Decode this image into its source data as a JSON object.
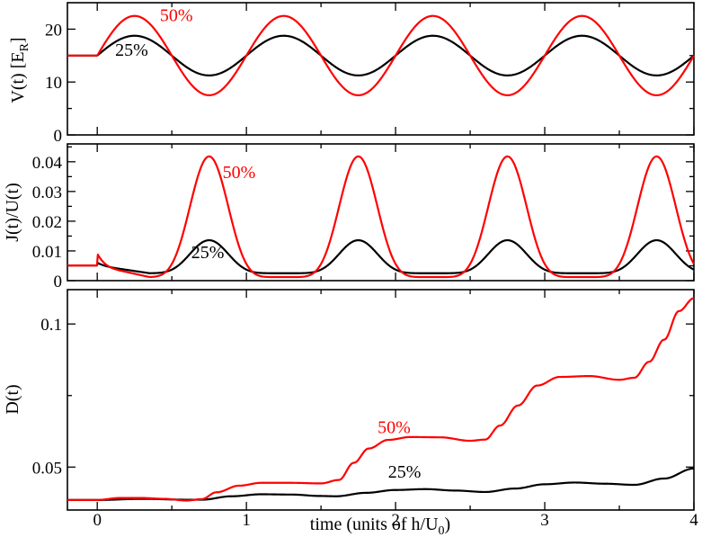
{
  "chart_data": {
    "type": "line",
    "shared_x": {
      "label_prefix": "time (units of h/U",
      "label_sub": "0",
      "label_suffix": ")",
      "range": [
        -0.2,
        4.0
      ],
      "ticks": [
        0,
        1,
        2,
        3,
        4
      ],
      "tick_labels": [
        "0",
        "1",
        "2",
        "3",
        "4"
      ]
    },
    "panels": [
      {
        "id": "V",
        "ylabel_prefix": "V(t) [E",
        "ylabel_sub": "R",
        "ylabel_suffix": "]",
        "ylim": [
          0,
          25
        ],
        "yticks": [
          0,
          10,
          20
        ],
        "ytick_labels": [
          "0",
          "10",
          "20"
        ],
        "series": [
          {
            "name": "50%",
            "color": "#ff0000",
            "model": "V",
            "base": 15,
            "amp": 7.5
          },
          {
            "name": "25%",
            "color": "#000000",
            "model": "V",
            "base": 15,
            "amp": 3.75
          }
        ],
        "annotations": [
          {
            "text": "50%",
            "color": "#ff0000",
            "x": 0.42,
            "y": 21.5
          },
          {
            "text": "25%",
            "color": "#000000",
            "x": 0.12,
            "y": 15.0
          }
        ]
      },
      {
        "id": "J",
        "ylabel": "J(t)/U(t)",
        "ylim": [
          0,
          0.046
        ],
        "yticks": [
          0,
          0.01,
          0.02,
          0.03,
          0.04
        ],
        "ytick_labels": [
          "0",
          "0.01",
          "0.02",
          "0.03",
          "0.04"
        ],
        "series": [
          {
            "name": "50%",
            "color": "#ff0000",
            "model": "J",
            "base": 0.0051,
            "peak": 0.0418,
            "min": 0.0012
          },
          {
            "name": "25%",
            "color": "#000000",
            "model": "J",
            "base": 0.0051,
            "peak": 0.0136,
            "min": 0.0025
          }
        ],
        "annotations": [
          {
            "text": "50%",
            "color": "#ff0000",
            "x": 0.84,
            "y": 0.0345
          },
          {
            "text": "25%",
            "color": "#000000",
            "x": 0.63,
            "y": 0.0075
          }
        ]
      },
      {
        "id": "D",
        "ylabel": "D(t)",
        "ylim": [
          0.035,
          0.112
        ],
        "yticks": [
          0.05,
          0.1
        ],
        "ytick_labels": [
          "0.05",
          "0.1"
        ],
        "series": [
          {
            "name": "50%",
            "color": "#ff0000",
            "model": "D",
            "x": [
              -0.2,
              0.0,
              0.15,
              0.3,
              0.45,
              0.6,
              0.7,
              0.8,
              0.95,
              1.1,
              1.3,
              1.5,
              1.62,
              1.72,
              1.82,
              1.95,
              2.1,
              2.3,
              2.5,
              2.6,
              2.7,
              2.82,
              2.95,
              3.1,
              3.3,
              3.5,
              3.6,
              3.7,
              3.8,
              3.9,
              4.0
            ],
            "y": [
              0.0385,
              0.0385,
              0.0392,
              0.0392,
              0.0389,
              0.0383,
              0.0388,
              0.0412,
              0.0435,
              0.0445,
              0.0445,
              0.0443,
              0.0455,
              0.0515,
              0.0565,
              0.0595,
              0.0605,
              0.0604,
              0.0592,
              0.0596,
              0.0645,
              0.0715,
              0.0785,
              0.0815,
              0.0818,
              0.0805,
              0.0812,
              0.0868,
              0.0945,
              0.1045,
              0.109
            ]
          },
          {
            "name": "25%",
            "color": "#000000",
            "model": "D",
            "x": [
              -0.2,
              0.0,
              0.3,
              0.6,
              0.7,
              0.9,
              1.1,
              1.3,
              1.5,
              1.6,
              1.8,
              2.0,
              2.2,
              2.4,
              2.6,
              2.8,
              3.0,
              3.2,
              3.4,
              3.6,
              3.8,
              4.0
            ],
            "y": [
              0.0385,
              0.0385,
              0.0389,
              0.0386,
              0.0386,
              0.0398,
              0.0405,
              0.0404,
              0.0399,
              0.0398,
              0.041,
              0.042,
              0.0423,
              0.0418,
              0.0413,
              0.0425,
              0.044,
              0.0446,
              0.0442,
              0.0438,
              0.046,
              0.0495
            ]
          }
        ],
        "annotations": [
          {
            "text": "50%",
            "color": "#ff0000",
            "x": 1.88,
            "y": 0.0618
          },
          {
            "text": "25%",
            "color": "#000000",
            "x": 1.95,
            "y": 0.0463
          }
        ]
      }
    ]
  }
}
